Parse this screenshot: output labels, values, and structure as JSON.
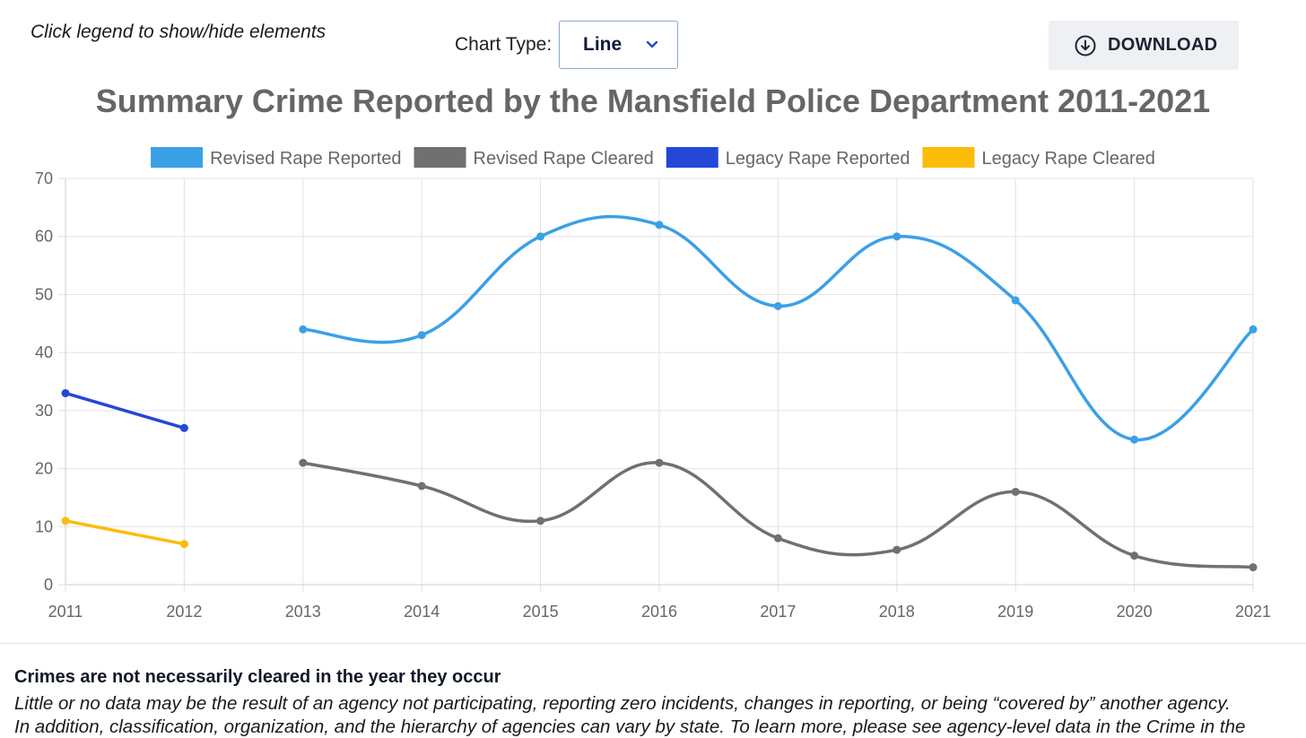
{
  "header": {
    "hint": "Click legend to show/hide elements",
    "chart_type_label": "Chart Type:",
    "chart_type_value": "Line",
    "download_label": "DOWNLOAD"
  },
  "footer": {
    "title": "Crimes are not necessarily cleared in the year they occur",
    "line1": "Little or no data may be the result of an agency not participating, reporting zero incidents, changes in reporting, or being “covered by” another agency.",
    "line2": "In addition, classification, organization, and the hierarchy of agencies can vary by state. To learn more, please see agency-level data in the Crime in the"
  },
  "colors": {
    "revised_reported": "#3aa0e6",
    "revised_cleared": "#707070",
    "legacy_reported": "#2447d8",
    "legacy_cleared": "#fbbd08",
    "grid": "#e2e2e2",
    "tick_text": "#666666"
  },
  "chart_data": {
    "type": "line",
    "title": "Summary Crime Reported by the Mansfield Police Department 2011-2021",
    "categories": [
      "2011",
      "2012",
      "2013",
      "2014",
      "2015",
      "2016",
      "2017",
      "2018",
      "2019",
      "2020",
      "2021"
    ],
    "ylim": [
      0,
      70
    ],
    "yticks": [
      0,
      10,
      20,
      30,
      40,
      50,
      60,
      70
    ],
    "grid": true,
    "legend_position": "top",
    "series": [
      {
        "name": "Revised Rape Reported",
        "color": "#3aa0e6",
        "values": [
          null,
          null,
          44,
          43,
          60,
          62,
          48,
          60,
          49,
          25,
          44
        ]
      },
      {
        "name": "Revised Rape Cleared",
        "color": "#707070",
        "values": [
          null,
          null,
          21,
          17,
          11,
          21,
          8,
          6,
          16,
          5,
          3
        ]
      },
      {
        "name": "Legacy Rape Reported",
        "color": "#2447d8",
        "values": [
          33,
          27,
          null,
          null,
          null,
          null,
          null,
          null,
          null,
          null,
          null
        ]
      },
      {
        "name": "Legacy Rape Cleared",
        "color": "#fbbd08",
        "values": [
          11,
          7,
          null,
          null,
          null,
          null,
          null,
          null,
          null,
          null,
          null
        ]
      }
    ]
  }
}
